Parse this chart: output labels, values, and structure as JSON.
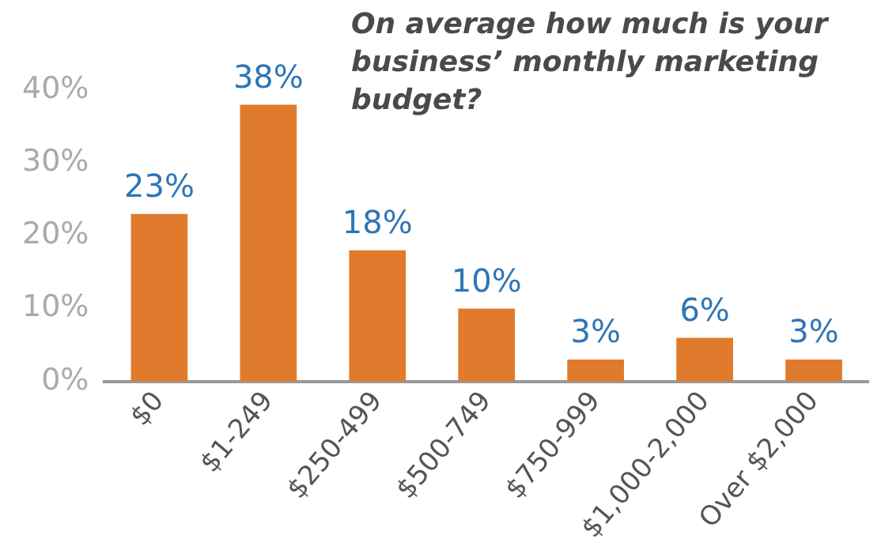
{
  "chart_data": {
    "type": "bar",
    "title": "On average how much is your business’ monthly marketing budget?",
    "categories": [
      "$0",
      "$1-249",
      "$250-499",
      "$500-749",
      "$750-999",
      "$1,000-2,000",
      "Over $2,000"
    ],
    "values": [
      23,
      38,
      18,
      10,
      3,
      6,
      3
    ],
    "value_labels": [
      "23%",
      "38%",
      "18%",
      "10%",
      "3%",
      "6%",
      "3%"
    ],
    "color": "#e07b2e",
    "ylim": [
      0,
      40
    ],
    "yticks": [
      {
        "value": 0,
        "label": "0%"
      },
      {
        "value": 10,
        "label": "10%"
      },
      {
        "value": 20,
        "label": "20%"
      },
      {
        "value": 30,
        "label": "30%"
      },
      {
        "value": 40,
        "label": "40%"
      }
    ],
    "grid": false,
    "legend": false
  }
}
